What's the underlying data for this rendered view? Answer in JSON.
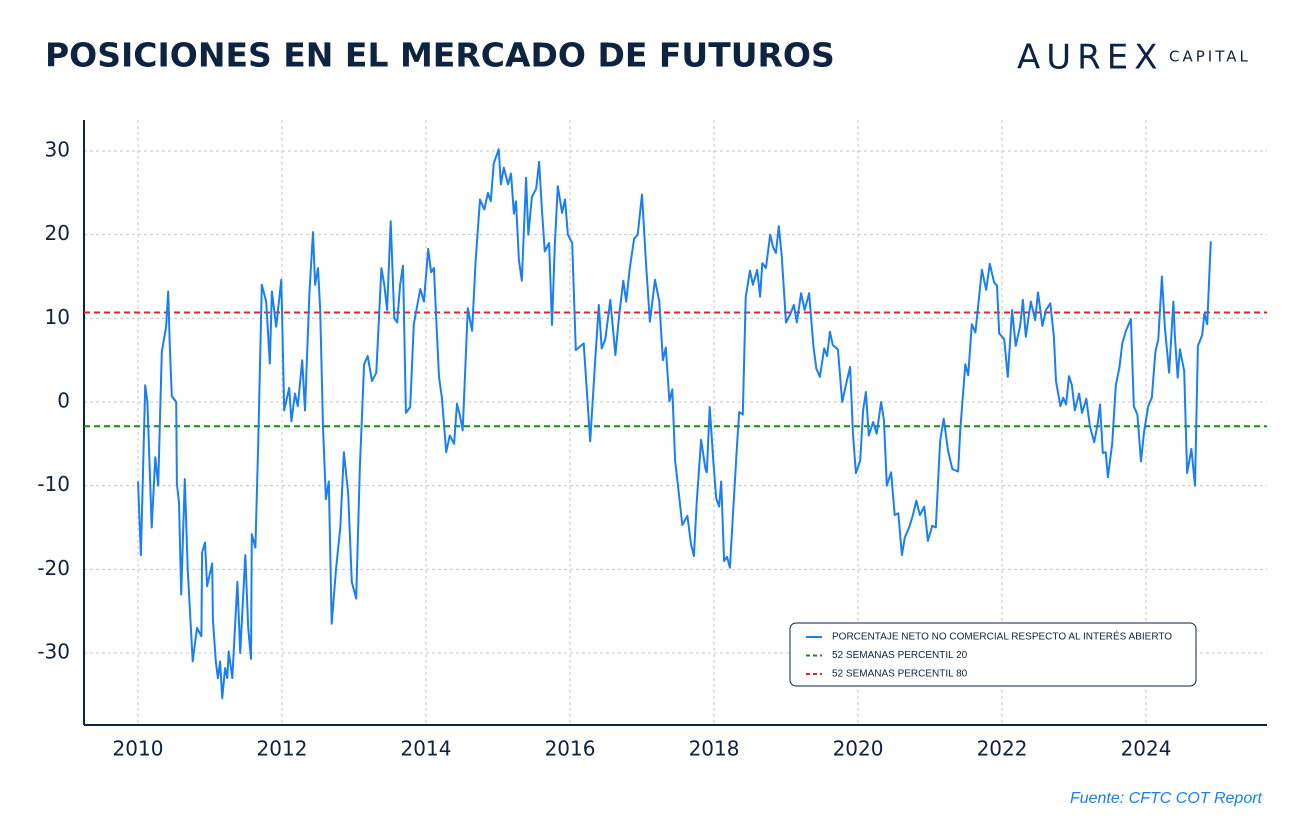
{
  "chart_data": {
    "type": "line",
    "title": "POSICIONES EN EL MERCADO DE FUTUROS",
    "brand": "AUREX",
    "brand_sub": "CAPITAL",
    "source": "Fuente: CFTC COT Report",
    "xlim": [
      2009.25,
      2025.68
    ],
    "ylim": [
      -38.6,
      33.7
    ],
    "xticks": [
      2010,
      2012,
      2014,
      2016,
      2018,
      2020,
      2022,
      2024
    ],
    "yticks": [
      -30,
      -20,
      -10,
      0,
      10,
      20,
      30
    ],
    "grid": true,
    "legend": "lower right",
    "series": [
      {
        "name": "PORCENTAJE NETO NO COMERCIAL RESPECTO AL INTERÉS ABIERTO",
        "color": "#1a7ff0",
        "x": [
          2010,
          2010.04,
          2010.1,
          2010.13,
          2010.19,
          2010.24,
          2010.28,
          2010.33,
          2010.39,
          2010.42,
          2010.44,
          2010.47,
          2010.53,
          2010.54,
          2010.57,
          2010.6,
          2010.65,
          2010.69,
          2010.76,
          2010.82,
          2010.88,
          2010.89,
          2010.93,
          2010.96,
          2011.03,
          2011.04,
          2011.08,
          2011.11,
          2011.14,
          2011.17,
          2011.21,
          2011.24,
          2011.26,
          2011.31,
          2011.38,
          2011.42,
          2011.49,
          2011.53,
          2011.57,
          2011.58,
          2011.63,
          2011.67,
          2011.72,
          2011.78,
          2011.83,
          2011.86,
          2011.92,
          2011.99,
          2012.03,
          2012.1,
          2012.13,
          2012.18,
          2012.22,
          2012.28,
          2012.32,
          2012.38,
          2012.43,
          2012.46,
          2012.5,
          2012.53,
          2012.57,
          2012.61,
          2012.65,
          2012.69,
          2012.75,
          2012.81,
          2012.86,
          2012.92,
          2012.97,
          2013.03,
          2013.08,
          2013.14,
          2013.19,
          2013.25,
          2013.31,
          2013.38,
          2013.42,
          2013.46,
          2013.51,
          2013.56,
          2013.6,
          2013.64,
          2013.68,
          2013.72,
          2013.78,
          2013.83,
          2013.92,
          2013.97,
          2014.03,
          2014.07,
          2014.11,
          2014.15,
          2014.18,
          2014.22,
          2014.28,
          2014.33,
          2014.39,
          2014.43,
          2014.47,
          2014.51,
          2014.58,
          2014.64,
          2014.69,
          2014.75,
          2014.81,
          2014.86,
          2014.9,
          2014.94,
          2015.01,
          2015.04,
          2015.08,
          2015.14,
          2015.18,
          2015.22,
          2015.25,
          2015.29,
          2015.33,
          2015.39,
          2015.42,
          2015.47,
          2015.53,
          2015.57,
          2015.61,
          2015.65,
          2015.71,
          2015.75,
          2015.79,
          2015.83,
          2015.89,
          2015.93,
          2015.97,
          2016.03,
          2016.08,
          2016.19,
          2016.28,
          2016.35,
          2016.4,
          2016.44,
          2016.49,
          2016.56,
          2016.63,
          2016.68,
          2016.74,
          2016.78,
          2016.83,
          2016.89,
          2016.94,
          2017,
          2017.06,
          2017.11,
          2017.18,
          2017.24,
          2017.29,
          2017.33,
          2017.38,
          2017.42,
          2017.46,
          2017.5,
          2017.56,
          2017.63,
          2017.68,
          2017.72,
          2017.76,
          2017.82,
          2017.88,
          2017.9,
          2017.94,
          2017.99,
          2018.03,
          2018.07,
          2018.1,
          2018.14,
          2018.18,
          2018.22,
          2018.26,
          2018.32,
          2018.35,
          2018.4,
          2018.44,
          2018.5,
          2018.54,
          2018.6,
          2018.64,
          2018.67,
          2018.72,
          2018.78,
          2018.82,
          2018.86,
          2018.9,
          2018.94,
          2019,
          2019.06,
          2019.11,
          2019.15,
          2019.21,
          2019.26,
          2019.32,
          2019.38,
          2019.42,
          2019.47,
          2019.53,
          2019.57,
          2019.61,
          2019.65,
          2019.72,
          2019.78,
          2019.83,
          2019.89,
          2019.93,
          2019.97,
          2020.03,
          2020.07,
          2020.11,
          2020.15,
          2020.21,
          2020.26,
          2020.32,
          2020.36,
          2020.4,
          2020.46,
          2020.51,
          2020.56,
          2020.61,
          2020.65,
          2020.71,
          2020.76,
          2020.81,
          2020.86,
          2020.92,
          2020.97,
          2021.03,
          2021.08,
          2021.14,
          2021.19,
          2021.25,
          2021.31,
          2021.39,
          2021.42,
          2021.49,
          2021.53,
          2021.58,
          2021.63,
          2021.72,
          2021.78,
          2021.83,
          2021.89,
          2021.93,
          2021.96,
          2022.03,
          2022.08,
          2022.14,
          2022.19,
          2022.25,
          2022.29,
          2022.33,
          2022.4,
          2022.46,
          2022.5,
          2022.56,
          2022.61,
          2022.67,
          2022.72,
          2022.75,
          2022.81,
          2022.85,
          2022.89,
          2022.93,
          2022.97,
          2023.01,
          2023.07,
          2023.11,
          2023.17,
          2023.22,
          2023.28,
          2023.33,
          2023.36,
          2023.4,
          2023.44,
          2023.47,
          2023.53,
          2023.58,
          2023.63,
          2023.67,
          2023.72,
          2023.79,
          2023.83,
          2023.88,
          2023.93,
          2023.97,
          2024.03,
          2024.08,
          2024.13,
          2024.17,
          2024.22,
          2024.26,
          2024.32,
          2024.38,
          2024.4,
          2024.44,
          2024.47,
          2024.53,
          2024.57,
          2024.63,
          2024.68,
          2024.72,
          2024.78,
          2024.81,
          2024.85,
          2024.9
        ],
        "values": [
          -9.5,
          -18.3,
          2,
          0,
          -15,
          -6.6,
          -10,
          6,
          9,
          13.2,
          7,
          0.7,
          0,
          -9.8,
          -12,
          -23,
          -9.2,
          -20,
          -31,
          -27,
          -28,
          -18,
          -16.8,
          -22,
          -19.3,
          -26,
          -31,
          -33,
          -31,
          -35.4,
          -31.8,
          -33,
          -29.8,
          -33,
          -21.5,
          -30,
          -18.3,
          -27,
          -30.7,
          -15.8,
          -17.4,
          -5,
          14,
          12,
          4.6,
          13.2,
          9,
          14.6,
          -1,
          1.7,
          -2.3,
          1,
          -0.5,
          5,
          -1,
          13,
          20.3,
          14,
          16,
          11,
          -3,
          -11.6,
          -9.5,
          -26.5,
          -20,
          -15,
          -6,
          -11,
          -21.5,
          -23.5,
          -8,
          4.5,
          5.5,
          2.5,
          3.5,
          16,
          14,
          11,
          21.6,
          10,
          9.5,
          14,
          16.3,
          -1.3,
          -0.6,
          9.3,
          13.5,
          12,
          18.3,
          15.5,
          16,
          8.5,
          3,
          0.5,
          -6,
          -4,
          -5,
          -0.2,
          -1.6,
          -3.4,
          11.2,
          8.5,
          17,
          24.2,
          23,
          25,
          24,
          28.5,
          30.2,
          26,
          28,
          26,
          27.3,
          22.5,
          24,
          17,
          14.5,
          26.8,
          20,
          24.5,
          25.5,
          28.7,
          23,
          18,
          19,
          9.2,
          19,
          25.8,
          22.6,
          24.2,
          20,
          19,
          6.2,
          7,
          -4.7,
          5,
          11.6,
          6.4,
          7.5,
          12.2,
          5.6,
          10.2,
          14.5,
          12,
          16,
          19.5,
          20,
          24.8,
          16,
          9.6,
          14.6,
          12,
          5,
          6.5,
          0.1,
          1.5,
          -7,
          -10,
          -14.7,
          -13.6,
          -17,
          -18.4,
          -12,
          -4.5,
          -8,
          -8.4,
          -0.6,
          -7,
          -11.5,
          -12.5,
          -9.5,
          -19,
          -18.5,
          -19.8,
          -14,
          -5,
          -1.2,
          -1.5,
          12.5,
          15.7,
          14,
          15.8,
          12.6,
          16.6,
          16,
          20,
          18.5,
          17.8,
          21,
          17.5,
          9.5,
          10.5,
          11.6,
          9.5,
          13,
          11,
          13,
          6.7,
          4,
          3,
          6.4,
          5.5,
          8.4,
          6.8,
          6.3,
          0,
          2,
          4.2,
          -3.9,
          -8.5,
          -7,
          -1,
          1.2,
          -4,
          -2.4,
          -3.8,
          0,
          -2.1,
          -10,
          -8.4,
          -13.5,
          -13.3,
          -18.3,
          -16.2,
          -15,
          -13.6,
          -11.8,
          -13.5,
          -12.5,
          -16.6,
          -14.8,
          -15,
          -4.7,
          -2,
          -5.8,
          -8,
          -8.3,
          -3.3,
          4.5,
          3.2,
          9.3,
          8.3,
          15.8,
          13.4,
          16.5,
          14.3,
          13.9,
          8.2,
          7.5,
          3,
          11,
          6.7,
          9,
          12.2,
          7.8,
          12,
          9.8,
          13.1,
          9.1,
          11,
          11.8,
          7.8,
          2.5,
          -0.5,
          0.5,
          -0.3,
          3.1,
          2,
          -1,
          1,
          -1.3,
          0.4,
          -2.9,
          -4.8,
          -2.5,
          -0.3,
          -6.1,
          -6,
          -9,
          -5,
          2,
          4.1,
          7,
          8.5,
          9.9,
          -0.5,
          -1.5,
          -7.1,
          -3.7,
          -0.5,
          0.5,
          6,
          7.5,
          15,
          9,
          3.5,
          12,
          8,
          2.9,
          6.3,
          3.7,
          -8.5,
          -5.6,
          -10,
          6.7,
          8,
          10.6,
          9.3,
          19.2
        ]
      }
    ],
    "hlines": [
      {
        "name": "52 SEMANAS PERCENTIL 20",
        "color": "#1a8a1a",
        "value": -2.9
      },
      {
        "name": "52 SEMANAS PERCENTIL 80",
        "color": "#e8231f",
        "value": 10.7
      }
    ]
  }
}
